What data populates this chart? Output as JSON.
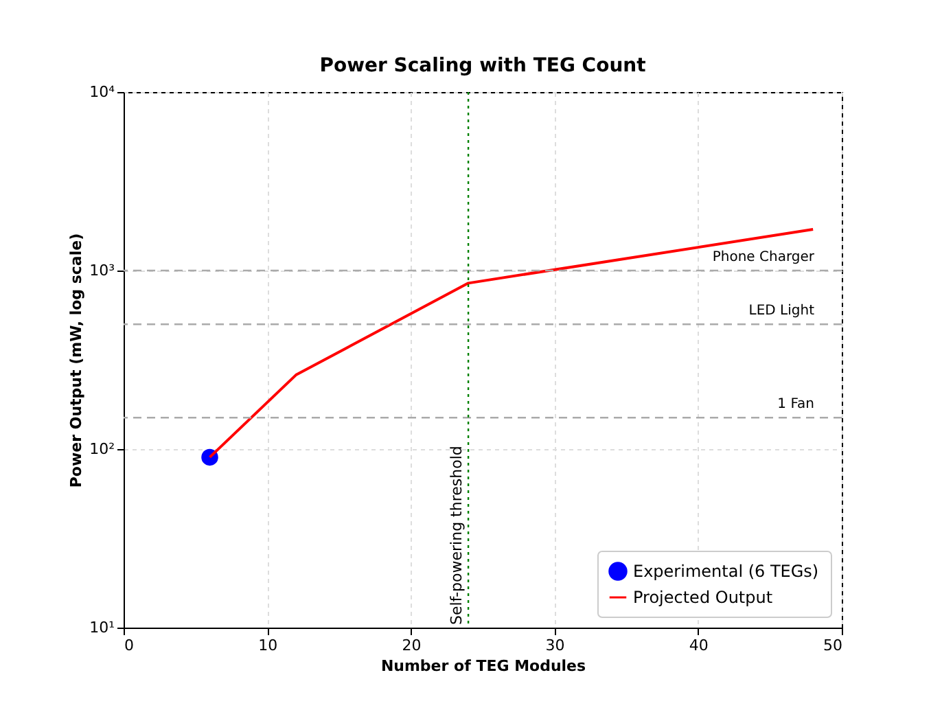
{
  "chart_data": {
    "type": "line",
    "title": "Power Scaling with TEG Count",
    "xlabel": "Number of TEG Modules",
    "ylabel": "Power Output (mW, log scale)",
    "series": [
      {
        "name": "Experimental (6 TEGs)",
        "type": "scatter",
        "color": "#0000ff",
        "marker": "circle",
        "x": [
          6
        ],
        "values": [
          90
        ]
      },
      {
        "name": "Projected Output",
        "type": "line",
        "color": "#ff0000",
        "line_style": "solid",
        "x": [
          6,
          12,
          24,
          48
        ],
        "values": [
          90,
          260,
          850,
          1700
        ]
      }
    ],
    "xlim": [
      0,
      50
    ],
    "xticks": [
      0,
      10,
      20,
      30,
      40,
      50
    ],
    "ylim": [
      10,
      10000
    ],
    "yticks": [
      {
        "value": 10,
        "label": "10¹"
      },
      {
        "value": 100,
        "label": "10²"
      },
      {
        "value": 1000,
        "label": "10³"
      },
      {
        "value": 10000,
        "label": "10⁴"
      }
    ],
    "log": "y",
    "grid": true,
    "legend": "bottom right",
    "ref_lines": [
      {
        "axis": "y",
        "value": 1000,
        "label": "Phone Charger",
        "color": "#aaaaaa",
        "line_style": "dashed"
      },
      {
        "axis": "y",
        "value": 500,
        "label": "LED Light",
        "color": "#aaaaaa",
        "line_style": "dashed"
      },
      {
        "axis": "y",
        "value": 150,
        "label": "1 Fan",
        "color": "#aaaaaa",
        "line_style": "dashed"
      },
      {
        "axis": "x",
        "value": 24,
        "label": "Self-powering threshold",
        "color": "#008000",
        "line_style": "dotted"
      }
    ]
  }
}
